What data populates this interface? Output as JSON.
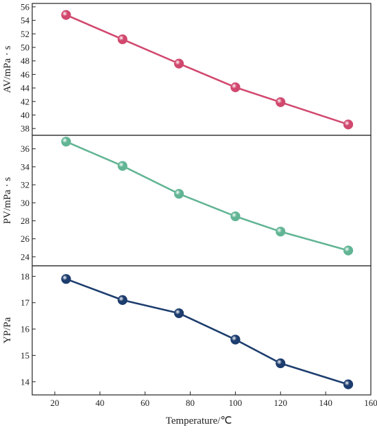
{
  "chart_data": {
    "type": "line",
    "x": [
      25,
      50,
      75,
      100,
      120,
      150
    ],
    "xlabel": "Temperature/℃",
    "xlim": [
      10,
      160
    ],
    "xticks": [
      20,
      40,
      60,
      80,
      100,
      120,
      140,
      160
    ],
    "legend": "none",
    "grid": false,
    "panels": [
      {
        "name": "AV",
        "ylabel": "AV/mPa · s",
        "ylim": [
          37,
          56.5
        ],
        "yticks": [
          38,
          40,
          42,
          44,
          46,
          48,
          50,
          52,
          54,
          56
        ],
        "color": "#d1486e",
        "values": [
          54.8,
          51.2,
          47.6,
          44.1,
          41.9,
          38.6
        ]
      },
      {
        "name": "PV",
        "ylabel": "PV/mPa · s",
        "ylim": [
          23,
          37.5
        ],
        "yticks": [
          24,
          26,
          28,
          30,
          32,
          34,
          36
        ],
        "color": "#62b594",
        "values": [
          36.8,
          34.1,
          31.0,
          28.5,
          26.8,
          24.7
        ]
      },
      {
        "name": "YP",
        "ylabel": "YP/Pa",
        "ylim": [
          13.5,
          18.4
        ],
        "yticks": [
          14,
          15,
          16,
          17,
          18
        ],
        "color": "#1d3d6e",
        "values": [
          17.9,
          17.1,
          16.6,
          15.6,
          14.7,
          13.9
        ]
      }
    ]
  }
}
